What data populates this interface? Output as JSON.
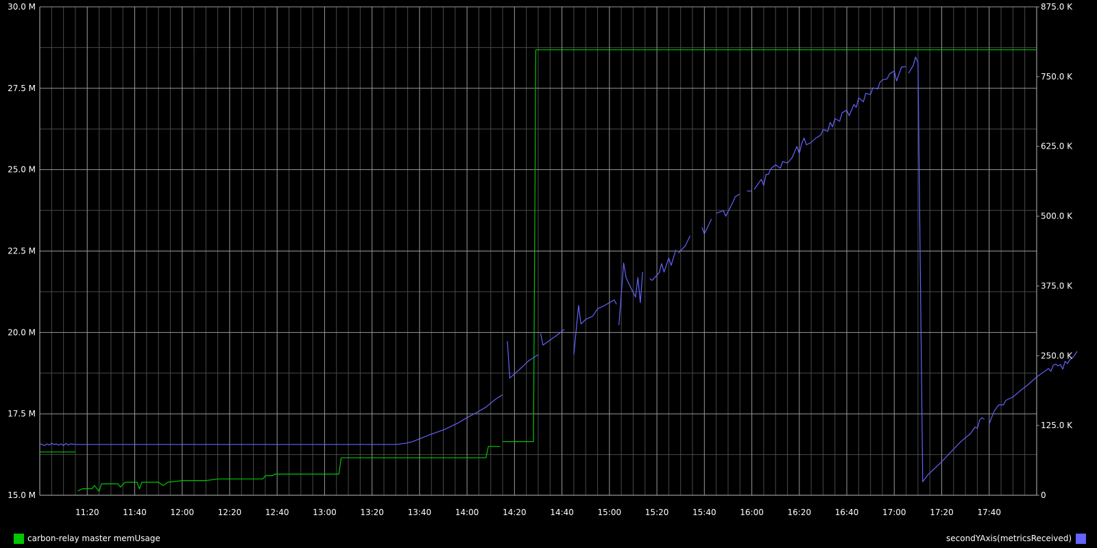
{
  "chart_data": {
    "type": "line",
    "title": "",
    "background": "#000000",
    "grid": true,
    "x": {
      "start": "11:00",
      "end": "18:00",
      "tick_labels": [
        "11:20",
        "11:40",
        "12:00",
        "12:20",
        "12:40",
        "13:00",
        "13:20",
        "13:40",
        "14:00",
        "14:20",
        "14:40",
        "15:00",
        "15:20",
        "15:40",
        "16:00",
        "16:20",
        "16:40",
        "17:00",
        "17:20",
        "17:40"
      ]
    },
    "y_left": {
      "range": [
        15.0,
        30.0
      ],
      "tick_labels": [
        "15.0 M",
        "17.5 M",
        "20.0 M",
        "22.5 M",
        "25.0 M",
        "27.5 M",
        "30.0 M"
      ],
      "tick_values": [
        15.0,
        17.5,
        20.0,
        22.5,
        25.0,
        27.5,
        30.0
      ]
    },
    "y_right": {
      "range": [
        0,
        875
      ],
      "tick_labels": [
        "0",
        "125.0 K",
        "250.0 K",
        "375.0 K",
        "500.0 K",
        "625.0 K",
        "750.0 K",
        "875.0 K"
      ],
      "tick_values": [
        0,
        125,
        250,
        375,
        500,
        625,
        750,
        875
      ]
    },
    "series": [
      {
        "name": "carbon-relay master memUsage",
        "axis": "left",
        "unit": "M",
        "color": "#00c800",
        "segments": [
          [
            [
              "11:00",
              16.33
            ],
            [
              "11:15",
              16.33
            ]
          ],
          [
            [
              "11:16",
              15.13
            ],
            [
              "11:18",
              15.2
            ],
            [
              "11:22",
              15.2
            ],
            [
              "11:23",
              15.3
            ],
            [
              "11:25",
              15.12
            ],
            [
              "11:26",
              15.35
            ],
            [
              "11:33",
              15.35
            ],
            [
              "11:34",
              15.25
            ],
            [
              "11:36",
              15.4
            ],
            [
              "11:41",
              15.4
            ],
            [
              "11:42",
              15.2
            ],
            [
              "11:43",
              15.4
            ],
            [
              "11:50",
              15.4
            ],
            [
              "11:52",
              15.3
            ],
            [
              "11:54",
              15.4
            ],
            [
              "12:00",
              15.45
            ],
            [
              "12:10",
              15.45
            ],
            [
              "12:15",
              15.5
            ],
            [
              "12:34",
              15.5
            ],
            [
              "12:35",
              15.6
            ],
            [
              "12:38",
              15.6
            ],
            [
              "12:39",
              15.65
            ],
            [
              "13:06",
              15.65
            ],
            [
              "13:07",
              16.15
            ],
            [
              "14:08",
              16.15
            ],
            [
              "14:09",
              16.5
            ],
            [
              "14:14",
              16.5
            ]
          ],
          [
            [
              "14:15",
              16.65
            ],
            [
              "14:28",
              16.65
            ],
            [
              "14:29",
              28.68
            ],
            [
              "18:00",
              28.68
            ]
          ]
        ]
      },
      {
        "name": "secondYAxis(metricsReceived)",
        "axis": "right",
        "unit": "K",
        "color": "#6464ff",
        "segments": [
          [
            [
              "11:00",
              92
            ],
            [
              "11:01",
              91
            ],
            [
              "11:02",
              89
            ],
            [
              "11:03",
              92
            ],
            [
              "11:04",
              90
            ],
            [
              "11:05",
              93
            ],
            [
              "11:06",
              91
            ],
            [
              "11:07",
              92
            ],
            [
              "11:08",
              90
            ],
            [
              "11:09",
              92
            ],
            [
              "11:10",
              89
            ],
            [
              "11:11",
              93
            ],
            [
              "11:12",
              90
            ],
            [
              "11:13",
              92
            ],
            [
              "11:15",
              91
            ],
            [
              "13:30",
              91
            ]
          ],
          [
            [
              "13:30",
              91
            ],
            [
              "13:34",
              93
            ],
            [
              "13:37",
              96
            ],
            [
              "13:40",
              101
            ],
            [
              "13:44",
              108
            ],
            [
              "13:50",
              117
            ],
            [
              "13:56",
              129
            ],
            [
              "14:00",
              139
            ],
            [
              "14:04",
              148
            ],
            [
              "14:08",
              158
            ],
            [
              "14:12",
              172
            ],
            [
              "14:15",
              180
            ]
          ],
          [
            [
              "14:17",
              276
            ],
            [
              "14:18",
              210
            ],
            [
              "14:22",
              225
            ],
            [
              "14:26",
              241
            ],
            [
              "14:30",
              252
            ]
          ],
          [
            [
              "14:31",
              290
            ],
            [
              "14:32",
              269
            ],
            [
              "14:35",
              278
            ],
            [
              "14:38",
              287
            ],
            [
              "14:41",
              297
            ]
          ],
          [
            [
              "14:45",
              252
            ],
            [
              "14:47",
              340
            ],
            [
              "14:48",
              307
            ],
            [
              "14:50",
              315
            ],
            [
              "14:53",
              321
            ],
            [
              "14:55",
              334
            ],
            [
              "14:58",
              340
            ],
            [
              "15:02",
              350
            ],
            [
              "15:03",
              342
            ]
          ],
          [
            [
              "15:04",
              305
            ],
            [
              "15:06",
              416
            ],
            [
              "15:07",
              390
            ],
            [
              "15:09",
              372
            ],
            [
              "15:11",
              355
            ],
            [
              "15:12",
              390
            ],
            [
              "15:13",
              345
            ],
            [
              "15:14",
              400
            ]
          ],
          [
            [
              "15:17",
              388
            ],
            [
              "15:18",
              385
            ],
            [
              "15:21",
              399
            ],
            [
              "15:22",
              415
            ],
            [
              "15:23",
              400
            ],
            [
              "15:25",
              425
            ],
            [
              "15:26",
              412
            ],
            [
              "15:28",
              440
            ]
          ],
          [
            [
              "15:29",
              434
            ],
            [
              "15:32",
              447
            ],
            [
              "15:34",
              465
            ]
          ],
          [
            [
              "15:39",
              480
            ],
            [
              "15:40",
              468
            ],
            [
              "15:43",
              495
            ]
          ],
          [
            [
              "15:45",
              505
            ],
            [
              "15:48",
              510
            ],
            [
              "15:49",
              500
            ],
            [
              "15:52",
              525
            ],
            [
              "15:53",
              535
            ],
            [
              "15:55",
              540
            ]
          ],
          [
            [
              "15:58",
              545
            ],
            [
              "16:00",
              545
            ]
          ],
          [
            [
              "16:01",
              548
            ],
            [
              "16:04",
              566
            ],
            [
              "16:05",
              555
            ],
            [
              "16:06",
              575
            ],
            [
              "16:07",
              575
            ],
            [
              "16:08",
              585
            ],
            [
              "16:10",
              592
            ],
            [
              "16:12",
              586
            ],
            [
              "16:13",
              598
            ],
            [
              "16:15",
              595
            ],
            [
              "16:17",
              605
            ],
            [
              "16:19",
              625
            ],
            [
              "16:20",
              612
            ],
            [
              "16:21",
              630
            ],
            [
              "16:22",
              640
            ],
            [
              "16:23",
              628
            ],
            [
              "16:25",
              632
            ],
            [
              "16:27",
              640
            ],
            [
              "16:29",
              645
            ],
            [
              "16:30",
              655
            ],
            [
              "16:32",
              652
            ],
            [
              "16:33",
              668
            ],
            [
              "16:34",
              660
            ],
            [
              "16:35",
              675
            ],
            [
              "16:37",
              670
            ],
            [
              "16:38",
              685
            ],
            [
              "16:40",
              690
            ],
            [
              "16:41",
              680
            ],
            [
              "16:43",
              700
            ],
            [
              "16:44",
              695
            ],
            [
              "16:45",
              712
            ],
            [
              "16:47",
              705
            ],
            [
              "16:48",
              720
            ],
            [
              "16:50",
              718
            ],
            [
              "16:51",
              730
            ],
            [
              "16:53",
              728
            ],
            [
              "16:54",
              740
            ],
            [
              "16:55",
              744
            ],
            [
              "16:57",
              746
            ],
            [
              "16:58",
              755
            ],
            [
              "17:00",
              760
            ],
            [
              "17:01",
              742
            ]
          ],
          [
            [
              "17:01",
              742
            ],
            [
              "17:03",
              767
            ],
            [
              "17:05",
              768
            ]
          ],
          [
            [
              "17:06",
              756
            ],
            [
              "17:08",
              770
            ],
            [
              "17:09",
              785
            ],
            [
              "17:10",
              775
            ],
            [
              "17:12",
              24
            ],
            [
              "17:14",
              36
            ],
            [
              "17:17",
              48
            ],
            [
              "17:20",
              60
            ],
            [
              "17:24",
              78
            ],
            [
              "17:28",
              96
            ],
            [
              "17:32",
              110
            ],
            [
              "17:34",
              122
            ],
            [
              "17:35",
              120
            ],
            [
              "17:36",
              135
            ],
            [
              "17:37",
              139
            ],
            [
              "17:38",
              136
            ]
          ],
          [
            [
              "17:40",
              128
            ],
            [
              "17:42",
              150
            ],
            [
              "17:44",
              162
            ],
            [
              "17:46",
              162
            ],
            [
              "17:47",
              170
            ],
            [
              "17:50",
              176
            ],
            [
              "17:53",
              187
            ],
            [
              "17:56",
              197
            ],
            [
              "18:00",
              212
            ],
            [
              "18:03",
              221
            ],
            [
              "18:05",
              227
            ],
            [
              "18:06",
              222
            ],
            [
              "18:07",
              233
            ],
            [
              "18:08",
              235
            ],
            [
              "18:09",
              232
            ],
            [
              "18:10",
              234
            ],
            [
              "18:11",
              226
            ],
            [
              "18:12",
              240
            ],
            [
              "18:13",
              236
            ],
            [
              "18:14",
              243
            ],
            [
              "18:15",
              246
            ],
            [
              "18:16",
              251
            ],
            [
              "18:17",
              258
            ]
          ]
        ]
      }
    ],
    "legend_placement": "bottom"
  },
  "legend": {
    "left_label": "carbon-relay master memUsage",
    "left_color": "#00c800",
    "right_label": "secondYAxis(metricsReceived)",
    "right_color": "#6464ff"
  }
}
